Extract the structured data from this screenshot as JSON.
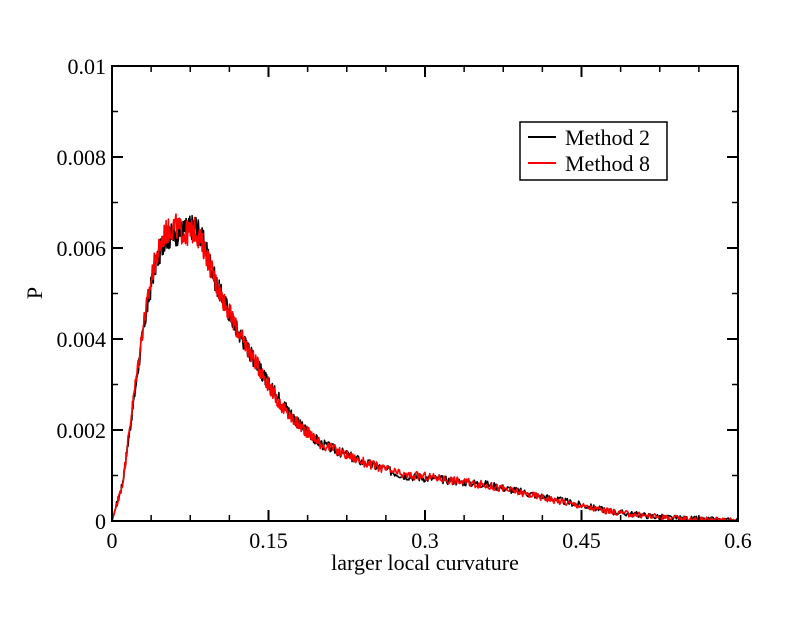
{
  "chart_data": {
    "type": "line",
    "xlabel": "larger local curvature",
    "ylabel": "P",
    "xlim": [
      0,
      0.6
    ],
    "ylim": [
      0,
      0.01
    ],
    "xticks": [
      0,
      0.15,
      0.3,
      0.45,
      0.6
    ],
    "xtick_labels": [
      "0",
      "0.15",
      "0.3",
      "0.45",
      "0.6"
    ],
    "yticks": [
      0,
      0.002,
      0.004,
      0.006,
      0.008,
      0.01
    ],
    "ytick_labels": [
      "0",
      "0.002",
      "0.004",
      "0.006",
      "0.008",
      "0.01"
    ],
    "grid": false,
    "legend_position": "top-right",
    "series": [
      {
        "name": "Method 2",
        "color": "#000000",
        "x": [
          0,
          0.01,
          0.02,
          0.03,
          0.04,
          0.05,
          0.06,
          0.07,
          0.08,
          0.09,
          0.1,
          0.11,
          0.12,
          0.13,
          0.14,
          0.15,
          0.16,
          0.17,
          0.18,
          0.19,
          0.2,
          0.22,
          0.24,
          0.26,
          0.28,
          0.3,
          0.32,
          0.34,
          0.36,
          0.38,
          0.4,
          0.42,
          0.44,
          0.46,
          0.48,
          0.5,
          0.52,
          0.54,
          0.56,
          0.58,
          0.6
        ],
        "y": [
          0,
          0.0008,
          0.0025,
          0.0042,
          0.0055,
          0.0062,
          0.0063,
          0.0064,
          0.0065,
          0.006,
          0.0052,
          0.0047,
          0.0042,
          0.0038,
          0.0034,
          0.003,
          0.0027,
          0.0024,
          0.0021,
          0.0019,
          0.0017,
          0.0015,
          0.0013,
          0.00115,
          0.001,
          0.00095,
          0.0009,
          0.00085,
          0.0008,
          0.0007,
          0.0006,
          0.0005,
          0.0004,
          0.0003,
          0.0002,
          0.00015,
          0.0001,
          6e-05,
          4e-05,
          2e-05,
          1e-05
        ]
      },
      {
        "name": "Method 8",
        "color": "#ff0000",
        "x": [
          0,
          0.01,
          0.02,
          0.03,
          0.04,
          0.05,
          0.06,
          0.07,
          0.08,
          0.09,
          0.1,
          0.11,
          0.12,
          0.13,
          0.14,
          0.15,
          0.16,
          0.17,
          0.18,
          0.19,
          0.2,
          0.22,
          0.24,
          0.26,
          0.28,
          0.3,
          0.32,
          0.34,
          0.36,
          0.38,
          0.4,
          0.42,
          0.44,
          0.46,
          0.48,
          0.5,
          0.52,
          0.54,
          0.56,
          0.58,
          0.6
        ],
        "y": [
          0,
          0.0008,
          0.0026,
          0.0043,
          0.0056,
          0.0063,
          0.0065,
          0.0063,
          0.0064,
          0.0059,
          0.0052,
          0.0047,
          0.0042,
          0.0038,
          0.0034,
          0.003,
          0.0026,
          0.0023,
          0.0021,
          0.0019,
          0.0017,
          0.0015,
          0.0013,
          0.00115,
          0.001,
          0.00098,
          0.00092,
          0.00085,
          0.00078,
          0.00068,
          0.00058,
          0.00048,
          0.00038,
          0.00028,
          0.0002,
          0.00014,
          0.0001,
          6e-05,
          4e-05,
          2e-05,
          1e-05
        ]
      }
    ]
  }
}
